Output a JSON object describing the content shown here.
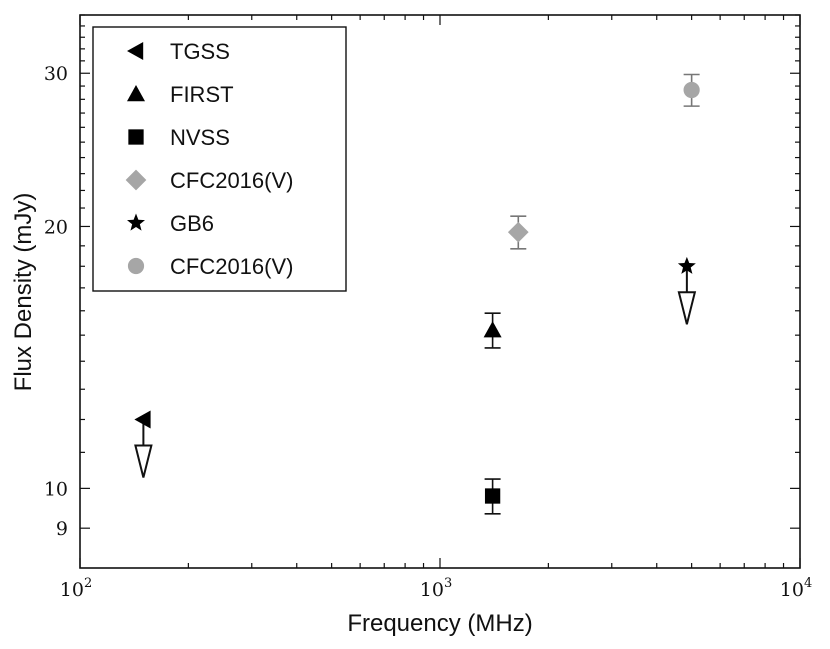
{
  "chart_data": {
    "type": "scatter",
    "title": "",
    "xlabel": "Frequency (MHz)",
    "ylabel": "Flux Density (mJy)",
    "x_scale": "log",
    "y_scale": "log",
    "xlim": [
      100,
      10000
    ],
    "ylim": [
      8.1,
      35
    ],
    "x_ticks": [
      {
        "value": 100,
        "base": "10",
        "exp": "2"
      },
      {
        "value": 1000,
        "base": "10",
        "exp": "3"
      },
      {
        "value": 10000,
        "base": "10",
        "exp": "4"
      }
    ],
    "y_ticks": [
      {
        "value": 9,
        "label": "9"
      },
      {
        "value": 10,
        "label": "10"
      },
      {
        "value": 20,
        "label": "20"
      },
      {
        "value": 30,
        "label": "30"
      }
    ],
    "grid": false,
    "legend_position": "top-left",
    "series": [
      {
        "name": "TGSS",
        "marker": "triangle-left",
        "color": "#000000",
        "points": [
          {
            "x": 150,
            "y": 12.0,
            "upper_limit": true
          }
        ]
      },
      {
        "name": "FIRST",
        "marker": "triangle-up",
        "color": "#000000",
        "points": [
          {
            "x": 1400,
            "y": 15.2,
            "yerr": 0.7
          }
        ]
      },
      {
        "name": "NVSS",
        "marker": "square",
        "color": "#000000",
        "points": [
          {
            "x": 1400,
            "y": 9.8,
            "yerr": 0.45
          }
        ]
      },
      {
        "name": "CFC2016(V)",
        "marker": "diamond",
        "color": "#a6a6a6",
        "points": [
          {
            "x": 1650,
            "y": 19.7,
            "yerr": 0.85
          }
        ]
      },
      {
        "name": "GB6",
        "marker": "star",
        "color": "#000000",
        "points": [
          {
            "x": 4850,
            "y": 18.0,
            "upper_limit": true
          }
        ]
      },
      {
        "name": "CFC2016(V)",
        "marker": "circle",
        "color": "#a6a6a6",
        "points": [
          {
            "x": 5000,
            "y": 28.7,
            "yerr": 1.2
          }
        ]
      }
    ]
  }
}
